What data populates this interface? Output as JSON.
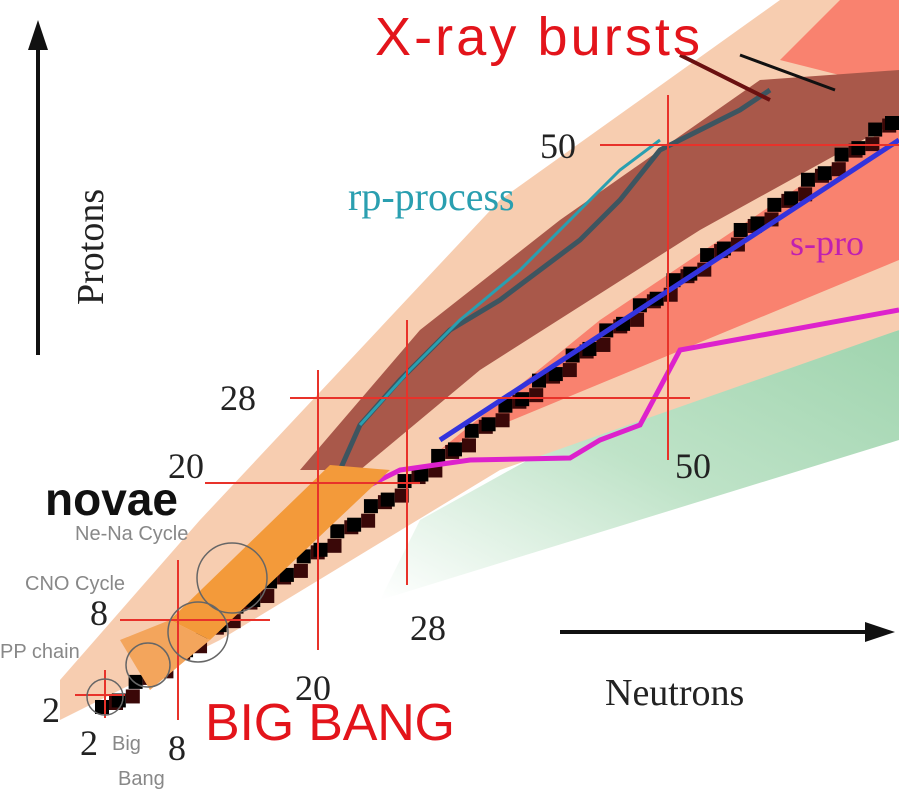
{
  "title": "X-ray bursts",
  "axes": {
    "vertical": "Protons",
    "horizontal": "Neutrons"
  },
  "processes": {
    "rp": "rp-process",
    "s": "s-pro",
    "novae": "novae",
    "big_bang": "BIG BANG"
  },
  "cycles": {
    "ne_na": "Ne-Na Cycle",
    "cno": "CNO Cycle",
    "pp": "PP chain",
    "big_bang_small": [
      "Big",
      "Bang"
    ]
  },
  "magic_numbers": {
    "protons": [
      2,
      8,
      20,
      28,
      50
    ],
    "neutrons": [
      2,
      8,
      20,
      28,
      50
    ]
  }
}
